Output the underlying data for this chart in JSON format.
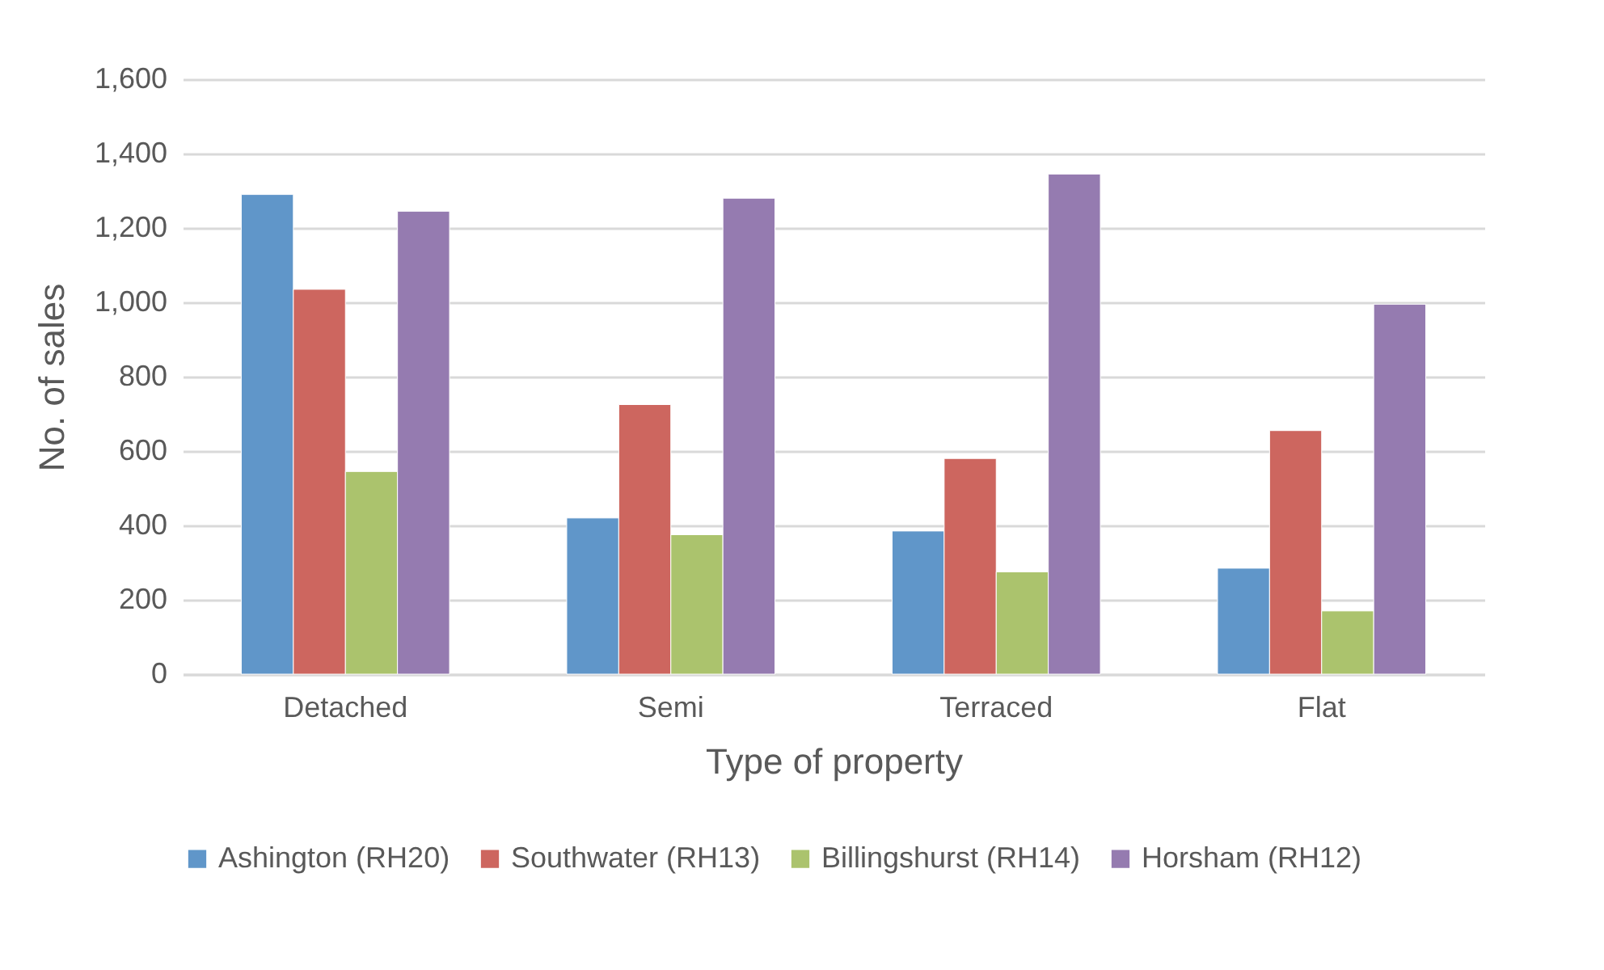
{
  "chart_data": {
    "type": "bar",
    "xlabel": "Type of property",
    "ylabel": "No. of sales",
    "categories": [
      "Detached",
      "Semi",
      "Terraced",
      "Flat"
    ],
    "series": [
      {
        "name": "Ashington (RH20)",
        "color": "#6096c9",
        "values": [
          1290,
          420,
          385,
          285
        ]
      },
      {
        "name": "Southwater (RH13)",
        "color": "#cd665f",
        "values": [
          1035,
          725,
          580,
          655
        ]
      },
      {
        "name": "Billingshurst (RH14)",
        "color": "#abc36d",
        "values": [
          545,
          375,
          275,
          170
        ]
      },
      {
        "name": "Horsham (RH12)",
        "color": "#957bb0",
        "values": [
          1245,
          1280,
          1345,
          995
        ]
      }
    ],
    "ylim": [
      0,
      1600
    ],
    "yticks": [
      0,
      200,
      400,
      600,
      800,
      {
        "value": 1000,
        "label": "1,000"
      },
      {
        "value": 1200,
        "label": "1,200"
      },
      {
        "value": 1400,
        "label": "1,400"
      },
      {
        "value": 1600,
        "label": "1,600"
      }
    ],
    "grid": "y",
    "legend": "bottom"
  }
}
